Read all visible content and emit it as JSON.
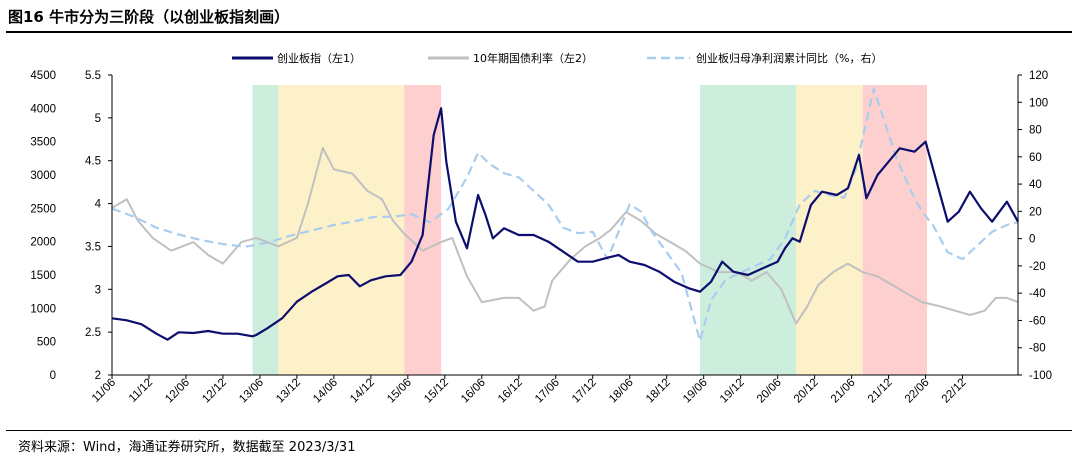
{
  "header": {
    "title": "图16 牛市分为三阶段（以创业板指刻画）"
  },
  "footer": {
    "source": "资料来源：Wind，海通证券研究所，数据截至 2023/3/31"
  },
  "colors": {
    "index": "#0d0d6e",
    "bond": "#c0c0c0",
    "profit": "#a9cdee",
    "green": "#cdeedd",
    "yellow": "#fdf1c9",
    "red": "#fecfcf"
  },
  "chart_data": {
    "type": "line",
    "title": "牛市分为三阶段（以创业板指刻画）",
    "x_ticks": [
      "11/06",
      "11/12",
      "12/06",
      "12/12",
      "13/06",
      "13/12",
      "14/06",
      "14/12",
      "15/06",
      "15/12",
      "16/06",
      "16/12",
      "17/06",
      "17/12",
      "18/06",
      "18/12",
      "19/06",
      "19/12",
      "20/06",
      "20/12",
      "21/06",
      "21/12",
      "22/06",
      "22/12"
    ],
    "x_range": [
      2011.0,
      2023.25
    ],
    "axis_left_outer": {
      "ticks": [
        "4500",
        "4000",
        "3500",
        "3000",
        "2500",
        "2000",
        "1500",
        "1000",
        "500",
        "0"
      ],
      "range": [
        0,
        4500
      ]
    },
    "axis_left_inner": {
      "ticks": [
        "5.5",
        "5",
        "4.5",
        "4",
        "3.5",
        "3",
        "2.5",
        "2"
      ],
      "range": [
        2,
        5.5
      ]
    },
    "axis_right": {
      "ticks": [
        "120",
        "100",
        "80",
        "60",
        "40",
        "20",
        "0",
        "-20",
        "-40",
        "-60",
        "-80",
        "-100"
      ],
      "range": [
        -100,
        120
      ]
    },
    "legend": {
      "position": "top",
      "items": [
        {
          "label": "创业板指（左1）",
          "style": "solid-dark"
        },
        {
          "label": "10年期国债利率（左2）",
          "style": "solid-grey"
        },
        {
          "label": "创业板归母净利润累计同比（%，右）",
          "style": "dashed-light"
        }
      ]
    },
    "phases": [
      {
        "name": "green",
        "from": 2012.9,
        "to": 2013.25
      },
      {
        "name": "yellow",
        "from": 2013.25,
        "to": 2014.95
      },
      {
        "name": "red",
        "from": 2014.95,
        "to": 2015.45
      },
      {
        "name": "green",
        "from": 2018.95,
        "to": 2020.25
      },
      {
        "name": "yellow",
        "from": 2020.25,
        "to": 2021.15
      },
      {
        "name": "red",
        "from": 2021.15,
        "to": 2022.02
      }
    ],
    "series": [
      {
        "name": "创业板指（左1）",
        "axis": "left_outer",
        "points": [
          [
            2011.0,
            850
          ],
          [
            2011.2,
            820
          ],
          [
            2011.4,
            760
          ],
          [
            2011.6,
            620
          ],
          [
            2011.75,
            530
          ],
          [
            2011.9,
            640
          ],
          [
            2012.1,
            630
          ],
          [
            2012.3,
            660
          ],
          [
            2012.5,
            620
          ],
          [
            2012.7,
            620
          ],
          [
            2012.9,
            580
          ],
          [
            2012.95,
            600
          ],
          [
            2013.1,
            700
          ],
          [
            2013.3,
            850
          ],
          [
            2013.5,
            1100
          ],
          [
            2013.7,
            1250
          ],
          [
            2013.9,
            1380
          ],
          [
            2014.05,
            1480
          ],
          [
            2014.2,
            1500
          ],
          [
            2014.35,
            1330
          ],
          [
            2014.5,
            1420
          ],
          [
            2014.7,
            1480
          ],
          [
            2014.9,
            1500
          ],
          [
            2015.05,
            1700
          ],
          [
            2015.2,
            2100
          ],
          [
            2015.35,
            3600
          ],
          [
            2015.45,
            4000
          ],
          [
            2015.52,
            3200
          ],
          [
            2015.65,
            2300
          ],
          [
            2015.8,
            1900
          ],
          [
            2015.95,
            2700
          ],
          [
            2016.05,
            2400
          ],
          [
            2016.15,
            2050
          ],
          [
            2016.3,
            2200
          ],
          [
            2016.5,
            2100
          ],
          [
            2016.7,
            2100
          ],
          [
            2016.9,
            2000
          ],
          [
            2017.1,
            1850
          ],
          [
            2017.3,
            1700
          ],
          [
            2017.5,
            1700
          ],
          [
            2017.7,
            1760
          ],
          [
            2017.85,
            1800
          ],
          [
            2018.0,
            1700
          ],
          [
            2018.2,
            1650
          ],
          [
            2018.4,
            1550
          ],
          [
            2018.6,
            1400
          ],
          [
            2018.8,
            1300
          ],
          [
            2018.95,
            1250
          ],
          [
            2019.1,
            1400
          ],
          [
            2019.25,
            1700
          ],
          [
            2019.4,
            1550
          ],
          [
            2019.6,
            1500
          ],
          [
            2019.8,
            1600
          ],
          [
            2020.0,
            1700
          ],
          [
            2020.1,
            1900
          ],
          [
            2020.2,
            2050
          ],
          [
            2020.3,
            2000
          ],
          [
            2020.45,
            2550
          ],
          [
            2020.6,
            2750
          ],
          [
            2020.8,
            2700
          ],
          [
            2020.95,
            2800
          ],
          [
            2021.1,
            3300
          ],
          [
            2021.2,
            2650
          ],
          [
            2021.35,
            3000
          ],
          [
            2021.5,
            3200
          ],
          [
            2021.65,
            3400
          ],
          [
            2021.85,
            3350
          ],
          [
            2022.0,
            3500
          ],
          [
            2022.15,
            2900
          ],
          [
            2022.3,
            2300
          ],
          [
            2022.45,
            2450
          ],
          [
            2022.6,
            2750
          ],
          [
            2022.75,
            2500
          ],
          [
            2022.9,
            2300
          ],
          [
            2023.1,
            2600
          ],
          [
            2023.25,
            2300
          ]
        ]
      },
      {
        "name": "10年期国债利率（左2）",
        "axis": "left_inner",
        "points": [
          [
            2011.0,
            3.95
          ],
          [
            2011.2,
            4.05
          ],
          [
            2011.35,
            3.8
          ],
          [
            2011.55,
            3.6
          ],
          [
            2011.8,
            3.45
          ],
          [
            2011.95,
            3.5
          ],
          [
            2012.1,
            3.55
          ],
          [
            2012.3,
            3.4
          ],
          [
            2012.5,
            3.3
          ],
          [
            2012.75,
            3.55
          ],
          [
            2012.95,
            3.6
          ],
          [
            2013.1,
            3.55
          ],
          [
            2013.25,
            3.5
          ],
          [
            2013.5,
            3.6
          ],
          [
            2013.65,
            4.0
          ],
          [
            2013.85,
            4.65
          ],
          [
            2014.0,
            4.4
          ],
          [
            2014.25,
            4.35
          ],
          [
            2014.45,
            4.15
          ],
          [
            2014.65,
            4.05
          ],
          [
            2014.8,
            3.8
          ],
          [
            2014.95,
            3.65
          ],
          [
            2015.2,
            3.45
          ],
          [
            2015.45,
            3.55
          ],
          [
            2015.6,
            3.6
          ],
          [
            2015.8,
            3.15
          ],
          [
            2016.0,
            2.85
          ],
          [
            2016.3,
            2.9
          ],
          [
            2016.5,
            2.9
          ],
          [
            2016.7,
            2.75
          ],
          [
            2016.85,
            2.8
          ],
          [
            2016.95,
            3.1
          ],
          [
            2017.2,
            3.35
          ],
          [
            2017.4,
            3.5
          ],
          [
            2017.6,
            3.6
          ],
          [
            2017.75,
            3.7
          ],
          [
            2017.95,
            3.9
          ],
          [
            2018.15,
            3.8
          ],
          [
            2018.35,
            3.65
          ],
          [
            2018.55,
            3.55
          ],
          [
            2018.75,
            3.45
          ],
          [
            2018.95,
            3.3
          ],
          [
            2019.2,
            3.2
          ],
          [
            2019.45,
            3.2
          ],
          [
            2019.65,
            3.1
          ],
          [
            2019.85,
            3.2
          ],
          [
            2020.05,
            3.0
          ],
          [
            2020.25,
            2.6
          ],
          [
            2020.4,
            2.8
          ],
          [
            2020.55,
            3.05
          ],
          [
            2020.75,
            3.2
          ],
          [
            2020.95,
            3.3
          ],
          [
            2021.15,
            3.2
          ],
          [
            2021.35,
            3.15
          ],
          [
            2021.55,
            3.05
          ],
          [
            2021.75,
            2.95
          ],
          [
            2021.95,
            2.85
          ],
          [
            2022.2,
            2.8
          ],
          [
            2022.4,
            2.75
          ],
          [
            2022.6,
            2.7
          ],
          [
            2022.8,
            2.75
          ],
          [
            2022.95,
            2.9
          ],
          [
            2023.1,
            2.9
          ],
          [
            2023.25,
            2.85
          ]
        ]
      },
      {
        "name": "创业板归母净利润累计同比（%，右）",
        "axis": "right",
        "points": [
          [
            2011.0,
            22
          ],
          [
            2011.3,
            16
          ],
          [
            2011.6,
            8
          ],
          [
            2011.9,
            3
          ],
          [
            2012.2,
            -1
          ],
          [
            2012.5,
            -4
          ],
          [
            2012.8,
            -6
          ],
          [
            2013.1,
            -3
          ],
          [
            2013.4,
            2
          ],
          [
            2013.7,
            6
          ],
          [
            2014.0,
            10
          ],
          [
            2014.3,
            13
          ],
          [
            2014.55,
            16
          ],
          [
            2014.8,
            16
          ],
          [
            2015.05,
            18
          ],
          [
            2015.3,
            12
          ],
          [
            2015.55,
            22
          ],
          [
            2015.8,
            45
          ],
          [
            2015.95,
            63
          ],
          [
            2016.1,
            55
          ],
          [
            2016.3,
            48
          ],
          [
            2016.5,
            45
          ],
          [
            2016.7,
            35
          ],
          [
            2016.9,
            25
          ],
          [
            2017.1,
            8
          ],
          [
            2017.3,
            4
          ],
          [
            2017.5,
            5
          ],
          [
            2017.7,
            -15
          ],
          [
            2017.85,
            5
          ],
          [
            2018.0,
            25
          ],
          [
            2018.15,
            20
          ],
          [
            2018.3,
            5
          ],
          [
            2018.5,
            -10
          ],
          [
            2018.7,
            -25
          ],
          [
            2018.95,
            -75
          ],
          [
            2019.1,
            -45
          ],
          [
            2019.3,
            -30
          ],
          [
            2019.5,
            -25
          ],
          [
            2019.7,
            -20
          ],
          [
            2019.9,
            -15
          ],
          [
            2020.1,
            0
          ],
          [
            2020.3,
            25
          ],
          [
            2020.5,
            35
          ],
          [
            2020.7,
            32
          ],
          [
            2020.9,
            30
          ],
          [
            2021.05,
            50
          ],
          [
            2021.3,
            110
          ],
          [
            2021.45,
            85
          ],
          [
            2021.6,
            60
          ],
          [
            2021.8,
            35
          ],
          [
            2021.95,
            20
          ],
          [
            2022.1,
            10
          ],
          [
            2022.3,
            -10
          ],
          [
            2022.5,
            -15
          ],
          [
            2022.7,
            -5
          ],
          [
            2022.9,
            5
          ],
          [
            2023.1,
            10
          ],
          [
            2023.25,
            12
          ]
        ]
      }
    ]
  }
}
